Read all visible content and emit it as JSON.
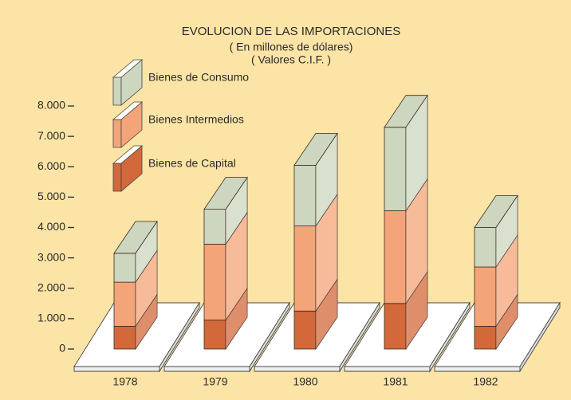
{
  "chart_data": {
    "type": "bar3d-stacked",
    "title": "EVOLUCION DE LAS IMPORTACIONES",
    "subtitle": [
      "( En millones de dólares)",
      "( Valores C.I.F. )"
    ],
    "categories": [
      "1978",
      "1979",
      "1980",
      "1981",
      "1982"
    ],
    "series": [
      {
        "name": "Bienes de Consumo",
        "color": "#cdd6be",
        "values": [
          950,
          1150,
          2000,
          2750,
          1300
        ]
      },
      {
        "name": "Bienes Intermedios",
        "color": "#f4a479",
        "values": [
          1450,
          2500,
          2800,
          3050,
          1950
        ]
      },
      {
        "name": "Bienes de Capital",
        "color": "#d3683a",
        "values": [
          750,
          950,
          1250,
          1500,
          750
        ]
      }
    ],
    "ylim": [
      0,
      8000
    ],
    "yticks": [
      0,
      {
        "value": 1000,
        "label": "1.000"
      },
      {
        "value": 2000,
        "label": "2.000"
      },
      {
        "value": 3000,
        "label": "3.000"
      },
      {
        "value": 4000,
        "label": "4.000"
      },
      {
        "value": 5000,
        "label": "5.000"
      },
      {
        "value": 6000,
        "label": "6.000"
      },
      {
        "value": 7000,
        "label": "7.000"
      },
      {
        "value": 8000,
        "label": "8.000"
      }
    ]
  }
}
